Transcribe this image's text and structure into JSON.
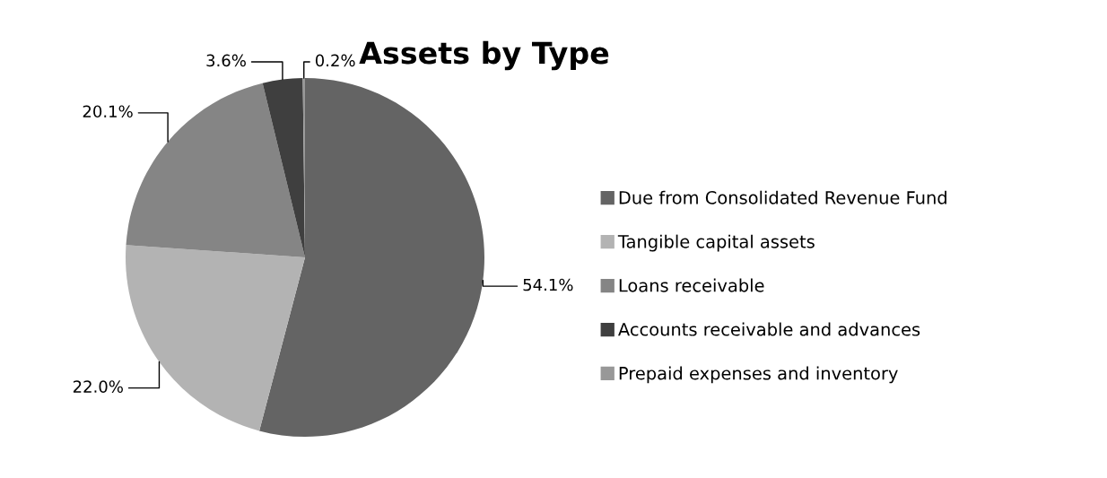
{
  "chart_data": {
    "type": "pie",
    "title": "Assets by Type",
    "categories": [
      "Due from Consolidated Revenue Fund",
      "Tangible capital assets",
      "Loans receivable",
      "Accounts receivable and advances",
      "Prepaid expenses and inventory"
    ],
    "values": [
      54.1,
      22.0,
      20.1,
      3.6,
      0.2
    ],
    "colors": [
      "#646464",
      "#b3b3b3",
      "#858585",
      "#3f3f3f",
      "#989898"
    ],
    "value_labels": [
      "54.1%",
      "22.0%",
      "20.1%",
      "3.6%",
      "0.2%"
    ],
    "legend": "right"
  }
}
